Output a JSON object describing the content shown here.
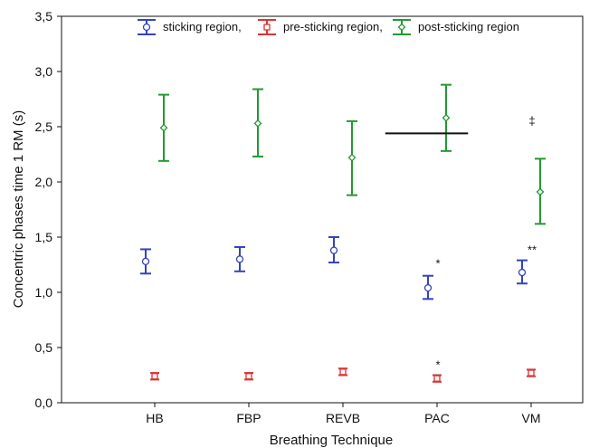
{
  "chart_data": {
    "type": "scatter",
    "subtype": "error-bar",
    "title": "",
    "xlabel": "Breathing Technique",
    "ylabel": "Concentric phases time 1 RM (s)",
    "categories": [
      "HB",
      "FBP",
      "REVB",
      "PAC",
      "VM"
    ],
    "ylim": [
      0,
      3.5
    ],
    "yticks": [
      0,
      0.5,
      1.0,
      1.5,
      2.0,
      2.5,
      3.0,
      3.5
    ],
    "ytick_labels": [
      "0,0",
      "0,5",
      "1,0",
      "1,5",
      "2,0",
      "2,5",
      "3,0",
      "3,5"
    ],
    "grid": false,
    "legend_position": "top",
    "series": [
      {
        "name": "sticking region,",
        "color": "#3344bb",
        "marker": "circle",
        "means": [
          1.28,
          1.3,
          1.38,
          1.04,
          1.18
        ],
        "lower": [
          1.17,
          1.19,
          1.27,
          0.94,
          1.08
        ],
        "upper": [
          1.39,
          1.41,
          1.5,
          1.15,
          1.29
        ]
      },
      {
        "name": "pre-sticking region,",
        "color": "#dd3333",
        "marker": "square",
        "means": [
          0.24,
          0.24,
          0.28,
          0.22,
          0.27
        ],
        "lower": [
          0.21,
          0.21,
          0.25,
          0.19,
          0.24
        ],
        "upper": [
          0.27,
          0.27,
          0.31,
          0.25,
          0.3
        ]
      },
      {
        "name": "post-sticking region",
        "color": "#229933",
        "marker": "diamond",
        "means": [
          2.49,
          2.53,
          2.22,
          2.58,
          1.91
        ],
        "lower": [
          2.19,
          2.23,
          1.88,
          2.28,
          1.62
        ],
        "upper": [
          2.79,
          2.84,
          2.55,
          2.88,
          2.21
        ]
      }
    ],
    "annotations": [
      {
        "text": "*",
        "category": "PAC",
        "y": 1.26
      },
      {
        "text": "**",
        "category": "VM",
        "y": 1.38
      },
      {
        "text": "*",
        "category": "PAC",
        "y": 0.34
      },
      {
        "text": "‡",
        "category": "VM",
        "y": 2.55,
        "line_y": 2.44,
        "line_from": 2.45,
        "line_to": 3.33
      }
    ]
  }
}
